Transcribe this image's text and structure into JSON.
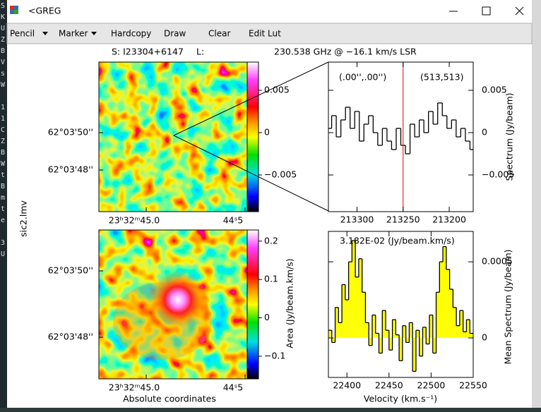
{
  "window": {
    "title": "<GREG"
  },
  "menu": [
    "Pencil",
    "Marker",
    "Hardcopy",
    "Draw",
    "Clear",
    "Edit Lut"
  ],
  "header": {
    "source": "S: I23304+6147",
    "l": "L:",
    "line": "230.538 GHz @ −16.1 km/s LSR"
  },
  "side_label": "sic2.lmv",
  "terminal": [
    "S",
    "K",
    "U",
    "Z",
    "B",
    "V",
    "s",
    "W",
    "1",
    "1",
    "C",
    "Z",
    "B",
    "W",
    "t",
    "B",
    "m",
    "t",
    "e",
    "3",
    "U"
  ],
  "map_top": {
    "dec_ticks": [
      "62°03'50''",
      "62°03'48''"
    ],
    "ra_ticks": [
      "23ʰ32ᵐ45.0",
      "44ˢ5"
    ],
    "colorbar_lim": [
      -0.00933,
      0.00833
    ],
    "colorbar_ticks": [
      0.005,
      0,
      {
        "value": -0.005,
        "label": "−0.005"
      }
    ]
  },
  "map_bottom": {
    "dec_ticks": [
      "62°03'50''",
      "62°03'48''"
    ],
    "ra_ticks": [
      "23ʰ32ᵐ45.0",
      "44ˢ5"
    ],
    "colorbar_lim": [
      -0.159,
      0.229
    ],
    "colorbar_ticks": [
      0.2,
      0.1,
      0,
      {
        "value": -0.1,
        "label": "−0.1"
      }
    ],
    "colorbar_label": "Area (Jy/beam.km/s)",
    "xlabel": "Absolute coordinates"
  },
  "spectrum_top": {
    "type": "step",
    "offset": "(.00'',.00'')",
    "pixel": "(513,513)",
    "ylabel": "Spectrum (Jy/beam)",
    "color": "#000000",
    "marker_color": "#e00000",
    "marker_x": 213250,
    "x": [
      213330,
      213325,
      213320,
      213315,
      213310,
      213305,
      213300,
      213295,
      213290,
      213285,
      213280,
      213275,
      213270,
      213265,
      213260,
      213255,
      213250,
      213245,
      213240,
      213235,
      213230,
      213225,
      213220,
      213215,
      213210,
      213205,
      213200,
      213195,
      213190,
      213185,
      213180,
      213175
    ],
    "values": [
      0.0005,
      0.002,
      -0.0005,
      0.0015,
      0.003,
      0.0005,
      0.0025,
      -0.001,
      0.001,
      0.002,
      0.0,
      -0.0015,
      0.0005,
      -0.001,
      -0.002,
      0.0005,
      -0.0015,
      -0.0025,
      0.001,
      -0.0005,
      0.0015,
      0.0,
      0.0025,
      0.001,
      0.0035,
      0.002,
      0.0005,
      0.0015,
      -0.0005,
      0.0005,
      -0.001,
      -0.002
    ],
    "xlim": [
      213331,
      213174
    ],
    "ylim": [
      -0.00933,
      0.00833
    ],
    "xticks": [
      213300,
      213250,
      213200
    ],
    "yticks": [
      0.005,
      0,
      {
        "value": -0.005,
        "label": "−0.005"
      }
    ]
  },
  "spectrum_bottom": {
    "type": "step",
    "label": "3.182E-02 (Jy/beam.km/s)",
    "xlabel": "Velocity (km.s⁻¹)",
    "ylabel": "Mean Spectrum (Jy/beam)",
    "color": "#000000",
    "fill": "#ffff00",
    "x": [
      22380,
      22384,
      22388,
      22392,
      22396,
      22400,
      22404,
      22408,
      22412,
      22416,
      22420,
      22424,
      22428,
      22432,
      22436,
      22440,
      22444,
      22448,
      22452,
      22456,
      22460,
      22464,
      22468,
      22472,
      22476,
      22480,
      22484,
      22488,
      22492,
      22496,
      22500,
      22504,
      22508,
      22512,
      22516,
      22520,
      22524,
      22528,
      22532,
      22536,
      22540,
      22544,
      22548
    ],
    "values": [
      5e-05,
      -3e-05,
      0.0002,
      0.0001,
      0.00035,
      0.00025,
      0.0005,
      0.00064,
      0.0004,
      0.00052,
      0.0003,
      0.0001,
      -5e-05,
      0.00015,
      3e-05,
      -0.0001,
      0.00018,
      5e-05,
      -8e-05,
      0.00012,
      2e-05,
      -0.00015,
      8e-05,
      -3e-05,
      0.0001,
      -0.00022,
      5e-05,
      -0.00012,
      7e-05,
      -4e-05,
      0.00015,
      -0.0001,
      0.0003,
      0.0005,
      0.0006,
      0.00045,
      0.00032,
      0.0002,
      8e-05,
      0.00018,
      4e-05,
      0.00012,
      3e-05
    ],
    "xlim": [
      22378,
      22550
    ],
    "ylim": [
      -0.00026,
      0.0007
    ],
    "xticks": [
      22400,
      22450,
      22500,
      22550
    ],
    "yticks": [
      0.0005,
      0
    ]
  }
}
